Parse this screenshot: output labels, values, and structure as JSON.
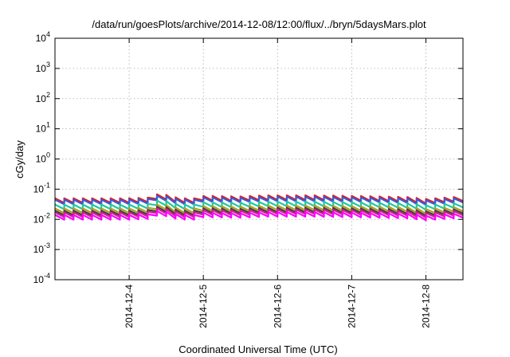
{
  "chart_data": {
    "type": "line",
    "title": "/data/run/goesPlots/archive/2014-12-08/12:00/flux/../bryn/5daysMars.plot",
    "xlabel": "Coordinated Universal Time (UTC)",
    "ylabel": "cGy/day",
    "yscale": "log",
    "ylim": [
      0.0001,
      10000
    ],
    "xlim": [
      "2014-12-03T00:00Z",
      "2014-12-08T12:00Z"
    ],
    "grid": true,
    "x_ticks": [
      "2014-12-4",
      "2014-12-5",
      "2014-12-6",
      "2014-12-7",
      "2014-12-8"
    ],
    "y_ticks": [
      {
        "value": 0.0001,
        "base": "10",
        "exp": "-4"
      },
      {
        "value": 0.001,
        "base": "10",
        "exp": "-3"
      },
      {
        "value": 0.01,
        "base": "10",
        "exp": "-2"
      },
      {
        "value": 0.1,
        "base": "10",
        "exp": "-1"
      },
      {
        "value": 1,
        "base": "10",
        "exp": "0"
      },
      {
        "value": 10,
        "base": "10",
        "exp": "1"
      },
      {
        "value": 100,
        "base": "10",
        "exp": "2"
      },
      {
        "value": 1000,
        "base": "10",
        "exp": "3"
      },
      {
        "value": 10000,
        "base": "10",
        "exp": "4"
      }
    ],
    "envelope": [
      {
        "x": "2014-12-03T00:00Z",
        "y": 1.0
      },
      {
        "x": "2014-12-04T00:00Z",
        "y": 1.0
      },
      {
        "x": "2014-12-04T06:00Z",
        "y": 1.05
      },
      {
        "x": "2014-12-04T10:00Z",
        "y": 1.45
      },
      {
        "x": "2014-12-04T16:00Z",
        "y": 1.0
      },
      {
        "x": "2014-12-04T22:00Z",
        "y": 1.0
      },
      {
        "x": "2014-12-05T00:00Z",
        "y": 1.2
      },
      {
        "x": "2014-12-05T12:00Z",
        "y": 1.15
      },
      {
        "x": "2014-12-05T20:00Z",
        "y": 1.25
      },
      {
        "x": "2014-12-06T12:00Z",
        "y": 1.25
      },
      {
        "x": "2014-12-07T00:00Z",
        "y": 1.2
      },
      {
        "x": "2014-12-07T18:00Z",
        "y": 1.1
      },
      {
        "x": "2014-12-08T00:00Z",
        "y": 0.95
      },
      {
        "x": "2014-12-08T12:00Z",
        "y": 1.15
      }
    ],
    "sawtooth_period_hours": 3,
    "sawtooth_drop_ratio": 0.7,
    "series": [
      {
        "color": "#e41a1c",
        "base": 0.05
      },
      {
        "color": "#3b5bd9",
        "base": 0.045
      },
      {
        "color": "#1ec8a0",
        "base": 0.031
      },
      {
        "color": "#b0a020",
        "base": 0.023
      },
      {
        "color": "#404040",
        "base": 0.0195
      },
      {
        "color": "#d02090",
        "base": 0.017
      },
      {
        "color": "#ff00ff",
        "base": 0.014
      }
    ]
  }
}
